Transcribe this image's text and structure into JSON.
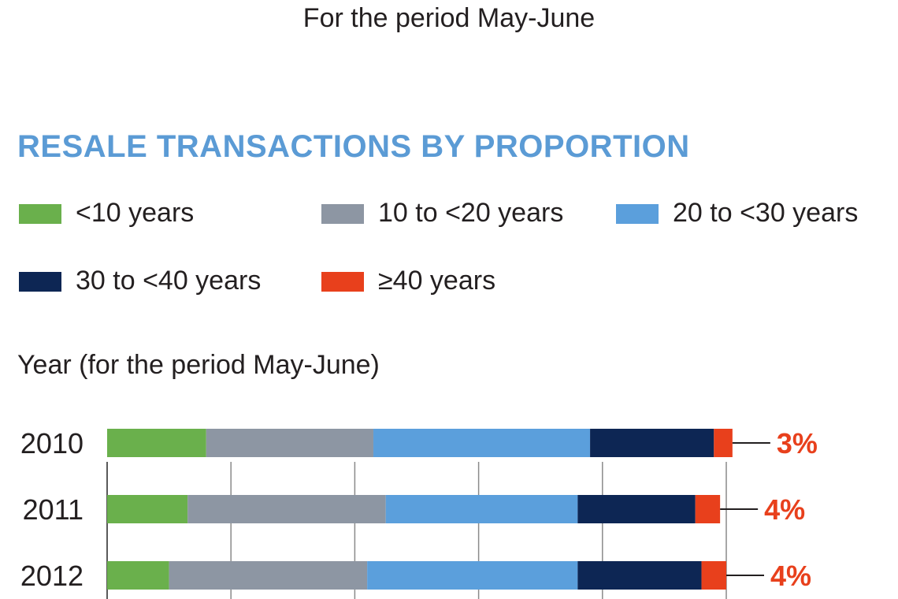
{
  "header": {
    "caption": "For the period May-June"
  },
  "chart_data": {
    "type": "bar",
    "orientation": "horizontal",
    "stacked": true,
    "title": "RESALE TRANSACTIONS BY PROPORTION",
    "ylabel": "Year (for the period May-June)",
    "categories": [
      "2010",
      "2011",
      "2012"
    ],
    "xlim": [
      0,
      100
    ],
    "grid": true,
    "legend_position": "top",
    "series": [
      {
        "name": "<10 years",
        "color": "#6ab04c",
        "values": [
          16,
          13,
          10
        ]
      },
      {
        "name": "10 to <20 years",
        "color": "#8d96a3",
        "values": [
          27,
          32,
          32
        ]
      },
      {
        "name": "20 to <30 years",
        "color": "#5b9fdc",
        "values": [
          35,
          31,
          34
        ]
      },
      {
        "name": "30 to <40 years",
        "color": "#0d2654",
        "values": [
          20,
          19,
          20
        ]
      },
      {
        "name": "≥40 years",
        "color": "#e8401c",
        "values": [
          3,
          4,
          4
        ]
      }
    ],
    "annotations": [
      "3%",
      "4%",
      "4%"
    ]
  }
}
